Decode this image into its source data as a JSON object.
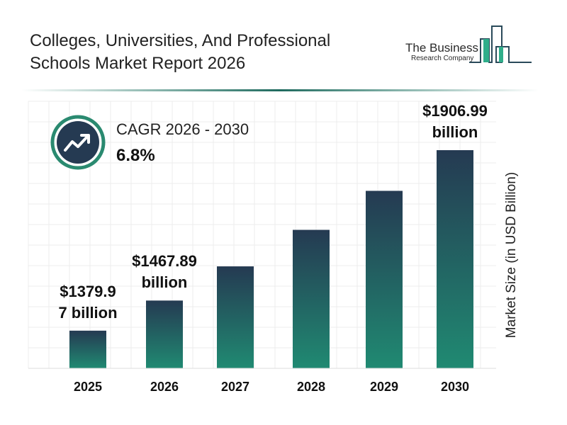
{
  "header": {
    "title_line1": "Colleges, Universities, And Professional",
    "title_line2": "Schools Market Report 2026"
  },
  "logo": {
    "line1": "The Business",
    "line2": "Research Company"
  },
  "cagr": {
    "label": "CAGR 2026 - 2030",
    "value": "6.8%",
    "icon": "trending-up-icon"
  },
  "colors": {
    "bar_top": "#253a52",
    "bar_bottom": "#208a72",
    "accent": "#1f7a66",
    "icon_ring": "#2a8a70"
  },
  "chart_data": {
    "type": "bar",
    "categories": [
      "2025",
      "2026",
      "2027",
      "2028",
      "2029",
      "2030"
    ],
    "values": [
      1379.97,
      1467.89,
      1567.7,
      1674.3,
      1788.2,
      1906.99
    ],
    "data_labels": [
      {
        "index": 0,
        "line1": "$1379.9",
        "line2": "7 billion"
      },
      {
        "index": 1,
        "line1": "$1467.89",
        "line2": "billion"
      },
      {
        "index": 5,
        "line1": "$1906.99",
        "line2": "billion"
      }
    ],
    "xlabel": "",
    "ylabel": "Market Size (in USD Billion)",
    "grid": true
  }
}
